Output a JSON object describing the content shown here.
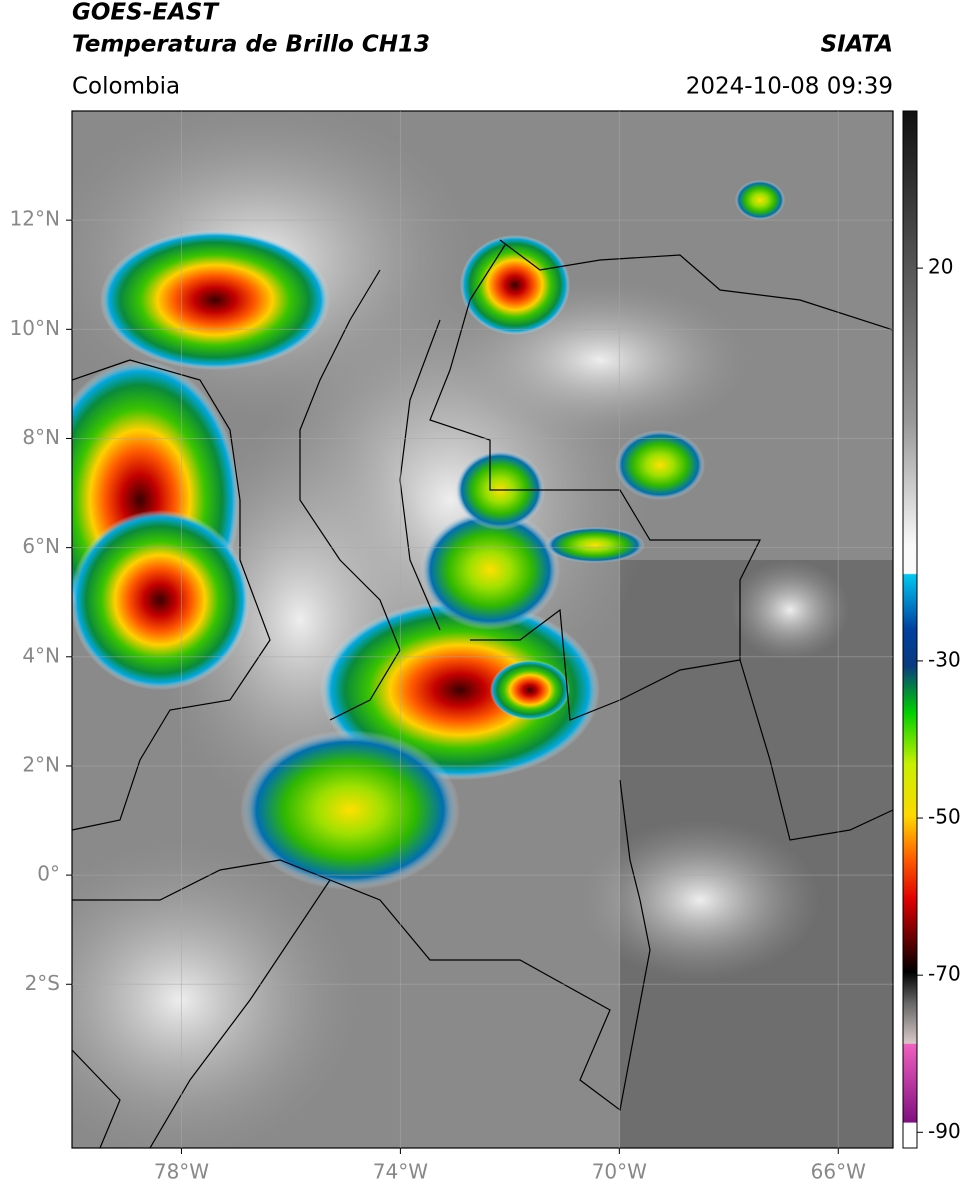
{
  "chart_data": {
    "type": "map",
    "title": "GOES-EAST",
    "subtitle": "Temperatura de Brillo CH13",
    "source": "SIATA",
    "region": "Colombia",
    "datetime": "2024-10-08 09:39",
    "xlim": [
      -80,
      -65
    ],
    "ylim": [
      -5,
      14
    ],
    "xticks": [
      {
        "value": -78,
        "label": "78°W"
      },
      {
        "value": -74,
        "label": "74°W"
      },
      {
        "value": -70,
        "label": "70°W"
      },
      {
        "value": -66,
        "label": "66°W"
      }
    ],
    "yticks": [
      {
        "value": 12,
        "label": "12°N"
      },
      {
        "value": 10,
        "label": "10°N"
      },
      {
        "value": 8,
        "label": "8°N"
      },
      {
        "value": 6,
        "label": "6°N"
      },
      {
        "value": 4,
        "label": "4°N"
      },
      {
        "value": 2,
        "label": "2°N"
      },
      {
        "value": 0,
        "label": "0°"
      },
      {
        "value": -2,
        "label": "2°S"
      }
    ],
    "grid": true,
    "colorbar": {
      "lim": [
        -92,
        40
      ],
      "ticks": [
        20,
        -30,
        -50,
        -70,
        -90
      ]
    }
  }
}
